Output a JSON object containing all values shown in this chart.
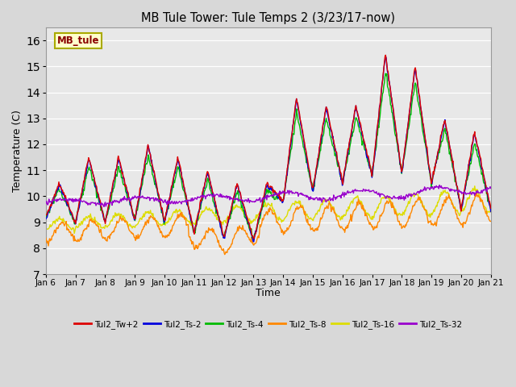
{
  "title": "MB Tule Tower: Tule Temps 2 (3/23/17-now)",
  "xlabel": "Time",
  "ylabel": "Temperature (C)",
  "ylim": [
    7.0,
    16.5
  ],
  "yticks": [
    7.0,
    8.0,
    9.0,
    10.0,
    11.0,
    12.0,
    13.0,
    14.0,
    15.0,
    16.0
  ],
  "bg_color": "#d8d8d8",
  "plot_bg_color": "#e8e8e8",
  "series_colors": {
    "Tul2_Tw+2": "#dd0000",
    "Tul2_Ts-2": "#0000dd",
    "Tul2_Ts-4": "#00bb00",
    "Tul2_Ts-8": "#ff8800",
    "Tul2_Ts-16": "#dddd00",
    "Tul2_Ts-32": "#9900cc"
  },
  "x_start": 6.0,
  "x_end": 21.0,
  "xtick_labels": [
    "Jan 6",
    "Jan 7",
    "Jan 8",
    "Jan 9",
    "Jan 10",
    "Jan 11",
    "Jan 12",
    "Jan 13",
    "Jan 14",
    "Jan 15",
    "Jan 16",
    "Jan 17",
    "Jan 18",
    "Jan 19",
    "Jan 20",
    "Jan 21"
  ],
  "xtick_positions": [
    6,
    7,
    8,
    9,
    10,
    11,
    12,
    13,
    14,
    15,
    16,
    17,
    18,
    19,
    20,
    21
  ],
  "watermark_text": "MB_tule",
  "watermark_color": "#8b0000",
  "watermark_bg": "#ffffcc",
  "watermark_border": "#aaaa00"
}
